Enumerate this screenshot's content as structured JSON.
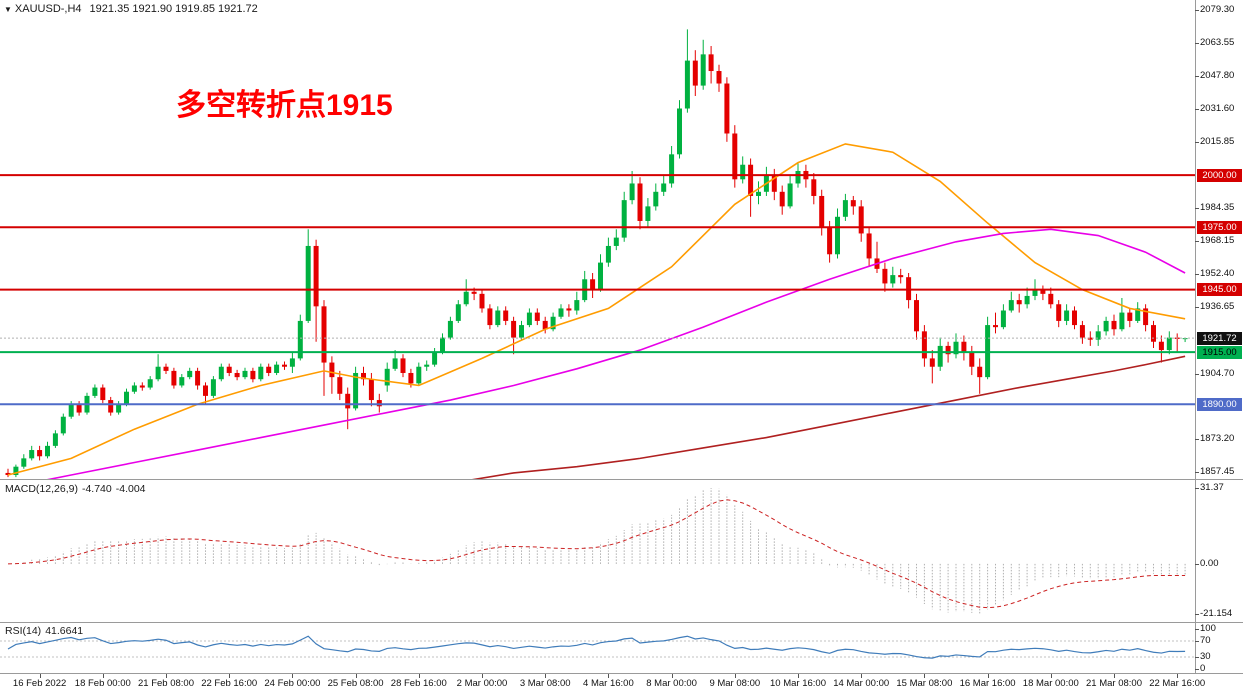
{
  "header": {
    "icon": "▼",
    "symbol_tf": "XAUUSD-,H4",
    "ohlc": "1921.35 1921.90 1919.85 1921.72"
  },
  "annotation": {
    "text": "多空转折点1915",
    "color": "#ff0000"
  },
  "colors": {
    "up": "#00b140",
    "down": "#e40000",
    "background": "#ffffff",
    "border": "#9a9a9a",
    "current_line": "#b0b0b0"
  },
  "chart_data": {
    "type": "candlestick",
    "symbol": "XAUUSD-",
    "timeframe": "H4",
    "price_axis": {
      "max": 2079.3,
      "min": 1857.45,
      "ticks": [
        "2079.30",
        "2063.55",
        "2047.80",
        "2031.60",
        "2015.85",
        "1984.35",
        "1968.15",
        "1952.40",
        "1936.65",
        "1904.70",
        "1873.20",
        "1857.45"
      ]
    },
    "horizontal_lines": [
      {
        "price": 2000.0,
        "label": "2000.00",
        "color": "#d40000",
        "text_color": "#ffffff"
      },
      {
        "price": 1975.0,
        "label": "1975.00",
        "color": "#d40000",
        "text_color": "#ffffff"
      },
      {
        "price": 1945.0,
        "label": "1945.00",
        "color": "#d40000",
        "text_color": "#ffffff"
      },
      {
        "price": 1915.0,
        "label": "1915.00",
        "color": "#00b050",
        "text_color": "#000000"
      },
      {
        "price": 1890.0,
        "label": "1890.00",
        "color": "#4f6bc8",
        "text_color": "#ffffff"
      }
    ],
    "current_price": {
      "value": 1921.72,
      "label": "1921.72",
      "badge_bg": "#111111",
      "badge_fg": "#ffffff"
    },
    "time_labels": [
      {
        "bar": 4,
        "text": "16 Feb 2022"
      },
      {
        "bar": 12,
        "text": "18 Feb 00:00"
      },
      {
        "bar": 20,
        "text": "21 Feb 08:00"
      },
      {
        "bar": 28,
        "text": "22 Feb 16:00"
      },
      {
        "bar": 36,
        "text": "24 Feb 00:00"
      },
      {
        "bar": 44,
        "text": "25 Feb 08:00"
      },
      {
        "bar": 52,
        "text": "28 Feb 16:00"
      },
      {
        "bar": 60,
        "text": "2 Mar 00:00"
      },
      {
        "bar": 68,
        "text": "3 Mar 08:00"
      },
      {
        "bar": 76,
        "text": "4 Mar 16:00"
      },
      {
        "bar": 84,
        "text": "8 Mar 00:00"
      },
      {
        "bar": 92,
        "text": "9 Mar 08:00"
      },
      {
        "bar": 100,
        "text": "10 Mar 16:00"
      },
      {
        "bar": 108,
        "text": "14 Mar 00:00"
      },
      {
        "bar": 116,
        "text": "15 Mar 08:00"
      },
      {
        "bar": 124,
        "text": "16 Mar 16:00"
      },
      {
        "bar": 132,
        "text": "18 Mar 00:00"
      },
      {
        "bar": 140,
        "text": "21 Mar 08:00"
      },
      {
        "bar": 148,
        "text": "22 Mar 16:00"
      }
    ],
    "candles": [
      [
        1857,
        1859,
        1855,
        1856
      ],
      [
        1856,
        1861,
        1855,
        1860
      ],
      [
        1860,
        1866,
        1859,
        1864
      ],
      [
        1864,
        1870,
        1863,
        1868
      ],
      [
        1868,
        1870,
        1863,
        1865
      ],
      [
        1865,
        1872,
        1864,
        1870
      ],
      [
        1870,
        1877.5,
        1869,
        1876
      ],
      [
        1876,
        1885.5,
        1875,
        1884
      ],
      [
        1884,
        1891.5,
        1883,
        1890
      ],
      [
        1890,
        1891.5,
        1884.5,
        1886
      ],
      [
        1886,
        1895.5,
        1885,
        1894
      ],
      [
        1894,
        1899.5,
        1893,
        1898
      ],
      [
        1898,
        1899.5,
        1890.5,
        1892
      ],
      [
        1892,
        1893.5,
        1884.5,
        1886
      ],
      [
        1886,
        1891.5,
        1885,
        1890
      ],
      [
        1890,
        1897.5,
        1889,
        1896
      ],
      [
        1896,
        1900.5,
        1895,
        1899
      ],
      [
        1899,
        1900.5,
        1896.5,
        1898
      ],
      [
        1898,
        1903.5,
        1897,
        1902
      ],
      [
        1902,
        1914,
        1901,
        1908
      ],
      [
        1908,
        1909.5,
        1904.5,
        1906
      ],
      [
        1906,
        1907.5,
        1897.5,
        1899
      ],
      [
        1899,
        1904.5,
        1898,
        1903
      ],
      [
        1903,
        1907.5,
        1902,
        1906
      ],
      [
        1906,
        1907.5,
        1897,
        1899
      ],
      [
        1899,
        1900.5,
        1890,
        1894
      ],
      [
        1894,
        1903.5,
        1893,
        1902
      ],
      [
        1902,
        1909.5,
        1901,
        1908
      ],
      [
        1908,
        1909.5,
        1903.5,
        1905
      ],
      [
        1905,
        1906.5,
        1901.5,
        1903
      ],
      [
        1903,
        1907.5,
        1902,
        1906
      ],
      [
        1906,
        1907.5,
        1900.5,
        1902
      ],
      [
        1902,
        1909.5,
        1901,
        1908
      ],
      [
        1908,
        1909.5,
        1903.5,
        1905
      ],
      [
        1905,
        1910.5,
        1904,
        1909
      ],
      [
        1909,
        1910.5,
        1906.5,
        1908
      ],
      [
        1908,
        1915,
        1905,
        1912
      ],
      [
        1912,
        1933,
        1911,
        1930
      ],
      [
        1930,
        1974,
        1929,
        1966
      ],
      [
        1966,
        1969,
        1920,
        1937
      ],
      [
        1937,
        1940,
        1894,
        1910
      ],
      [
        1910,
        1913,
        1895,
        1903
      ],
      [
        1903,
        1906,
        1892,
        1895
      ],
      [
        1895,
        1898,
        1878,
        1888
      ],
      [
        1888,
        1908,
        1887,
        1905
      ],
      [
        1905,
        1908,
        1899,
        1902
      ],
      [
        1902,
        1905,
        1889,
        1892
      ],
      [
        1892,
        1895,
        1886,
        1889
      ],
      [
        1899,
        1910,
        1896,
        1907
      ],
      [
        1907,
        1916,
        1906,
        1912
      ],
      [
        1912,
        1914,
        1903,
        1905
      ],
      [
        1905,
        1907,
        1898,
        1900
      ],
      [
        1900,
        1910,
        1899,
        1908
      ],
      [
        1908,
        1911,
        1906,
        1909
      ],
      [
        1909,
        1917,
        1908,
        1915
      ],
      [
        1915,
        1924,
        1914,
        1922
      ],
      [
        1922,
        1932,
        1921,
        1930
      ],
      [
        1930,
        1940,
        1929,
        1938
      ],
      [
        1938,
        1950,
        1937,
        1944
      ],
      [
        1944,
        1946,
        1940,
        1943
      ],
      [
        1943,
        1945,
        1934,
        1936
      ],
      [
        1936,
        1938,
        1926,
        1928
      ],
      [
        1928,
        1937,
        1927,
        1935
      ],
      [
        1935,
        1937,
        1928,
        1930
      ],
      [
        1930,
        1932,
        1914,
        1922
      ],
      [
        1922,
        1930,
        1921,
        1928
      ],
      [
        1928,
        1936,
        1927,
        1934
      ],
      [
        1934,
        1936,
        1928,
        1930
      ],
      [
        1930,
        1932,
        1924,
        1926
      ],
      [
        1926,
        1934,
        1925,
        1932
      ],
      [
        1932,
        1938,
        1931,
        1936
      ],
      [
        1936,
        1938,
        1932,
        1935
      ],
      [
        1935,
        1944,
        1933,
        1940
      ],
      [
        1940,
        1954,
        1939,
        1950
      ],
      [
        1950,
        1953,
        1941,
        1945
      ],
      [
        1945,
        1962,
        1944,
        1958
      ],
      [
        1958,
        1970,
        1956,
        1966
      ],
      [
        1966,
        1974,
        1964,
        1970
      ],
      [
        1970,
        1992,
        1968,
        1988
      ],
      [
        1988,
        2002,
        1986,
        1996
      ],
      [
        1996,
        1999,
        1974,
        1978
      ],
      [
        1978,
        1989,
        1975,
        1985
      ],
      [
        1985,
        1996,
        1983,
        1992
      ],
      [
        1992,
        2000,
        1990,
        1996
      ],
      [
        1996,
        2014,
        1994,
        2010
      ],
      [
        2010,
        2036,
        2008,
        2032
      ],
      [
        2032,
        2070,
        2030,
        2055
      ],
      [
        2055,
        2060,
        2038,
        2043
      ],
      [
        2043,
        2065,
        2041,
        2058
      ],
      [
        2058,
        2062,
        2044,
        2050
      ],
      [
        2050,
        2053,
        2040,
        2044
      ],
      [
        2044,
        2047,
        2016,
        2020
      ],
      [
        2020,
        2024,
        1994,
        1998
      ],
      [
        1998,
        2009,
        1996,
        2005
      ],
      [
        2005,
        2008,
        1980,
        1990
      ],
      [
        1990,
        1997,
        1986,
        1992
      ],
      [
        1992,
        2004,
        1990,
        2000
      ],
      [
        2000,
        2003,
        1988,
        1992
      ],
      [
        1992,
        1995,
        1981,
        1985
      ],
      [
        1985,
        2000,
        1984,
        1996
      ],
      [
        1996,
        2006,
        1994,
        2002
      ],
      [
        2002,
        2005,
        1994,
        1998
      ],
      [
        1998,
        2001,
        1986,
        1990
      ],
      [
        1990,
        1993,
        1971,
        1975
      ],
      [
        1975,
        1978,
        1958,
        1962
      ],
      [
        1962,
        1984,
        1960,
        1980
      ],
      [
        1980,
        1991,
        1978,
        1988
      ],
      [
        1988,
        1990,
        1981,
        1985
      ],
      [
        1985,
        1988,
        1968,
        1972
      ],
      [
        1972,
        1975,
        1956,
        1960
      ],
      [
        1960,
        1968,
        1953,
        1955
      ],
      [
        1955,
        1958,
        1944,
        1948
      ],
      [
        1948,
        1956,
        1946,
        1952
      ],
      [
        1952,
        1955,
        1948,
        1951
      ],
      [
        1951,
        1953,
        1936,
        1940
      ],
      [
        1940,
        1943,
        1921,
        1925
      ],
      [
        1925,
        1928,
        1908,
        1912
      ],
      [
        1912,
        1916,
        1900,
        1908
      ],
      [
        1908,
        1922,
        1906,
        1918
      ],
      [
        1918,
        1920,
        1910,
        1914
      ],
      [
        1914,
        1924,
        1912,
        1920
      ],
      [
        1920,
        1923,
        1911,
        1915
      ],
      [
        1915,
        1918,
        1904,
        1908
      ],
      [
        1908,
        1912,
        1895,
        1903
      ],
      [
        1903,
        1932,
        1902,
        1928
      ],
      [
        1928,
        1934,
        1924,
        1927
      ],
      [
        1927,
        1938,
        1926,
        1935
      ],
      [
        1935,
        1944,
        1934,
        1940
      ],
      [
        1940,
        1943,
        1934,
        1938
      ],
      [
        1938,
        1946,
        1936,
        1942
      ],
      [
        1942,
        1950,
        1940,
        1945
      ],
      [
        1945,
        1947,
        1940,
        1943
      ],
      [
        1943,
        1946,
        1936,
        1938
      ],
      [
        1938,
        1940,
        1927,
        1930
      ],
      [
        1930,
        1938,
        1928,
        1935
      ],
      [
        1935,
        1937,
        1926,
        1928
      ],
      [
        1928,
        1930,
        1919,
        1922
      ],
      [
        1922,
        1925,
        1918,
        1921
      ],
      [
        1921,
        1928,
        1918,
        1925
      ],
      [
        1925,
        1932,
        1923,
        1930
      ],
      [
        1930,
        1933,
        1923,
        1926
      ],
      [
        1926,
        1941,
        1925,
        1934
      ],
      [
        1934,
        1936,
        1927,
        1930
      ],
      [
        1930,
        1939,
        1929,
        1936
      ],
      [
        1936,
        1938,
        1925,
        1928
      ],
      [
        1928,
        1930,
        1917,
        1920
      ],
      [
        1920,
        1923,
        1910,
        1916
      ],
      [
        1916,
        1925,
        1914,
        1922
      ],
      [
        1922,
        1924,
        1915,
        1921.35
      ],
      [
        1921.35,
        1921.9,
        1919.85,
        1921.72
      ]
    ],
    "moving_averages": [
      {
        "name": "ma-fast-orange",
        "color": "#ff9c00",
        "points": [
          [
            0,
            1856
          ],
          [
            8,
            1864
          ],
          [
            16,
            1878
          ],
          [
            24,
            1890
          ],
          [
            32,
            1899
          ],
          [
            40,
            1906
          ],
          [
            44,
            1903
          ],
          [
            52,
            1899
          ],
          [
            60,
            1912
          ],
          [
            68,
            1926
          ],
          [
            76,
            1936
          ],
          [
            84,
            1956
          ],
          [
            92,
            1986
          ],
          [
            100,
            2006
          ],
          [
            106,
            2015
          ],
          [
            112,
            2011
          ],
          [
            118,
            1997
          ],
          [
            124,
            1977
          ],
          [
            130,
            1958
          ],
          [
            136,
            1945
          ],
          [
            142,
            1936
          ],
          [
            149,
            1931
          ]
        ]
      },
      {
        "name": "ma-mid-magenta",
        "color": "#e800e8",
        "points": [
          [
            0,
            1850
          ],
          [
            8,
            1856
          ],
          [
            16,
            1862
          ],
          [
            24,
            1868
          ],
          [
            32,
            1874
          ],
          [
            40,
            1880
          ],
          [
            48,
            1886
          ],
          [
            56,
            1892
          ],
          [
            64,
            1899
          ],
          [
            72,
            1907
          ],
          [
            80,
            1916
          ],
          [
            88,
            1927
          ],
          [
            96,
            1939
          ],
          [
            104,
            1950
          ],
          [
            112,
            1960
          ],
          [
            120,
            1968
          ],
          [
            126,
            1972
          ],
          [
            132,
            1974
          ],
          [
            138,
            1971
          ],
          [
            144,
            1963
          ],
          [
            149,
            1953
          ]
        ]
      },
      {
        "name": "ma-slow-darkred",
        "color": "#b02020",
        "points": [
          [
            56,
            1852
          ],
          [
            64,
            1857
          ],
          [
            72,
            1860
          ],
          [
            80,
            1864
          ],
          [
            88,
            1869
          ],
          [
            96,
            1874
          ],
          [
            104,
            1880
          ],
          [
            112,
            1886
          ],
          [
            120,
            1892
          ],
          [
            128,
            1898
          ],
          [
            134,
            1902
          ],
          [
            140,
            1906
          ],
          [
            144,
            1909
          ],
          [
            149,
            1913
          ]
        ]
      }
    ],
    "macd": {
      "label": "MACD(12,26,9)",
      "main_value": "-4.740",
      "signal_value": "-4.004",
      "axis_labels": [
        "31.37",
        "0.00",
        "-21.154"
      ],
      "histogram_color": "#b0b0b0",
      "signal_color": "#cc2222"
    },
    "rsi": {
      "label": "RSI(14)",
      "value": "41.6641",
      "axis_labels": [
        "100",
        "70",
        "30",
        "0"
      ],
      "levels": [
        70,
        30
      ],
      "color": "#3f7cba"
    }
  }
}
